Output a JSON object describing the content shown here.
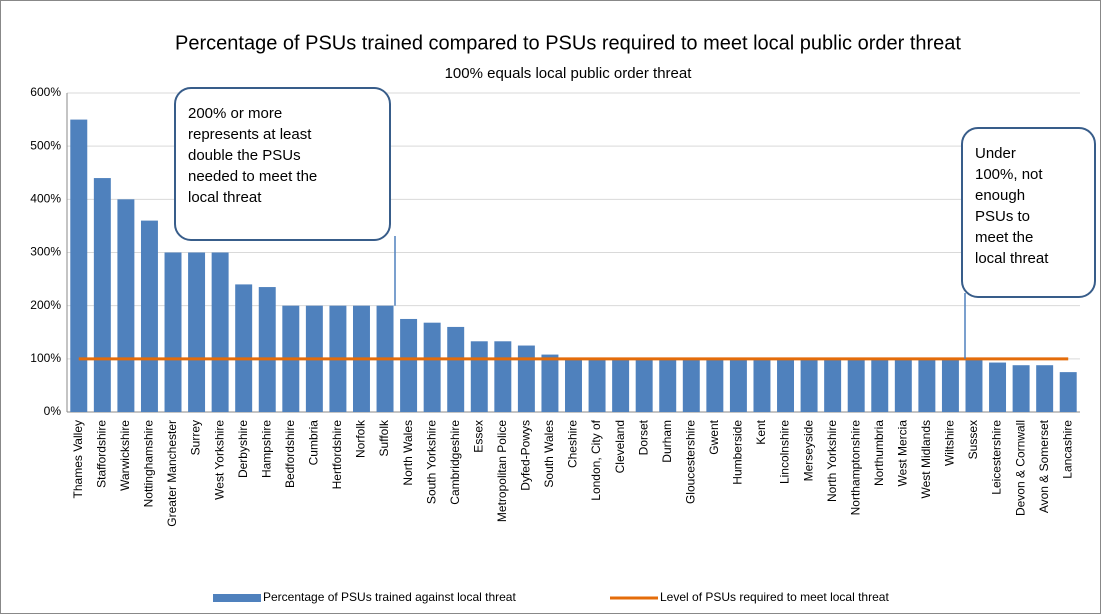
{
  "chart_data": {
    "type": "bar",
    "title": "Percentage of PSUs trained compared to PSUs required to meet local public order threat",
    "subtitle": "100% equals local public order threat",
    "categories": [
      "Thames Valley",
      "Staffordshire",
      "Warwickshire",
      "Nottinghamshire",
      "Greater Manchester",
      "Surrey",
      "West Yorkshire",
      "Derbyshire",
      "Hampshire",
      "Bedfordshire",
      "Cumbria",
      "Hertfordshire",
      "Norfolk",
      "Suffolk",
      "North Wales",
      "South Yorkshire",
      "Cambridgeshire",
      "Essex",
      "Metropolitan Police",
      "Dyfed-Powys",
      "South Wales",
      "Cheshire",
      "London, City of",
      "Cleveland",
      "Dorset",
      "Durham",
      "Gloucestershire",
      "Gwent",
      "Humberside",
      "Kent",
      "Lincolnshire",
      "Merseyside",
      "North Yorkshire",
      "Northamptonshire",
      "Northumbria",
      "West Mercia",
      "West Midlands",
      "Wiltshire",
      "Sussex",
      "Leicestershire",
      "Devon & Cornwall",
      "Avon & Somerset",
      "Lancashire"
    ],
    "series": [
      {
        "name": "Percentage of PSUs trained against local threat",
        "type": "bar",
        "color": "#4f81bd",
        "values": [
          550,
          440,
          400,
          360,
          300,
          300,
          300,
          240,
          235,
          200,
          200,
          200,
          200,
          200,
          175,
          168,
          160,
          133,
          133,
          125,
          108,
          100,
          100,
          100,
          100,
          100,
          100,
          100,
          100,
          100,
          100,
          100,
          100,
          100,
          100,
          100,
          100,
          100,
          100,
          93,
          88,
          88,
          75
        ]
      },
      {
        "name": "Level of PSUs required  to meet local threat",
        "type": "line",
        "color": "#e46c0a",
        "values": [
          100,
          100,
          100,
          100,
          100,
          100,
          100,
          100,
          100,
          100,
          100,
          100,
          100,
          100,
          100,
          100,
          100,
          100,
          100,
          100,
          100,
          100,
          100,
          100,
          100,
          100,
          100,
          100,
          100,
          100,
          100,
          100,
          100,
          100,
          100,
          100,
          100,
          100,
          100,
          100,
          100,
          100,
          100
        ]
      }
    ],
    "ylim": [
      0,
      600
    ],
    "yticks": [
      {
        "value": 0,
        "label": "0%"
      },
      {
        "value": 100,
        "label": "100%"
      },
      {
        "value": 200,
        "label": "200%"
      },
      {
        "value": 300,
        "label": "300%"
      },
      {
        "value": 400,
        "label": "400%"
      },
      {
        "value": 500,
        "label": "500%"
      },
      {
        "value": 600,
        "label": "600%"
      }
    ],
    "grid": true,
    "legend": "bottom",
    "annotations": [
      {
        "lines": [
          "200% or more",
          "represents at least",
          "double the PSUs",
          "needed to meet the",
          "local threat"
        ]
      },
      {
        "lines": [
          "Under",
          "100%, not",
          "enough",
          "PSUs to",
          "meet the",
          "local threat"
        ]
      }
    ]
  }
}
